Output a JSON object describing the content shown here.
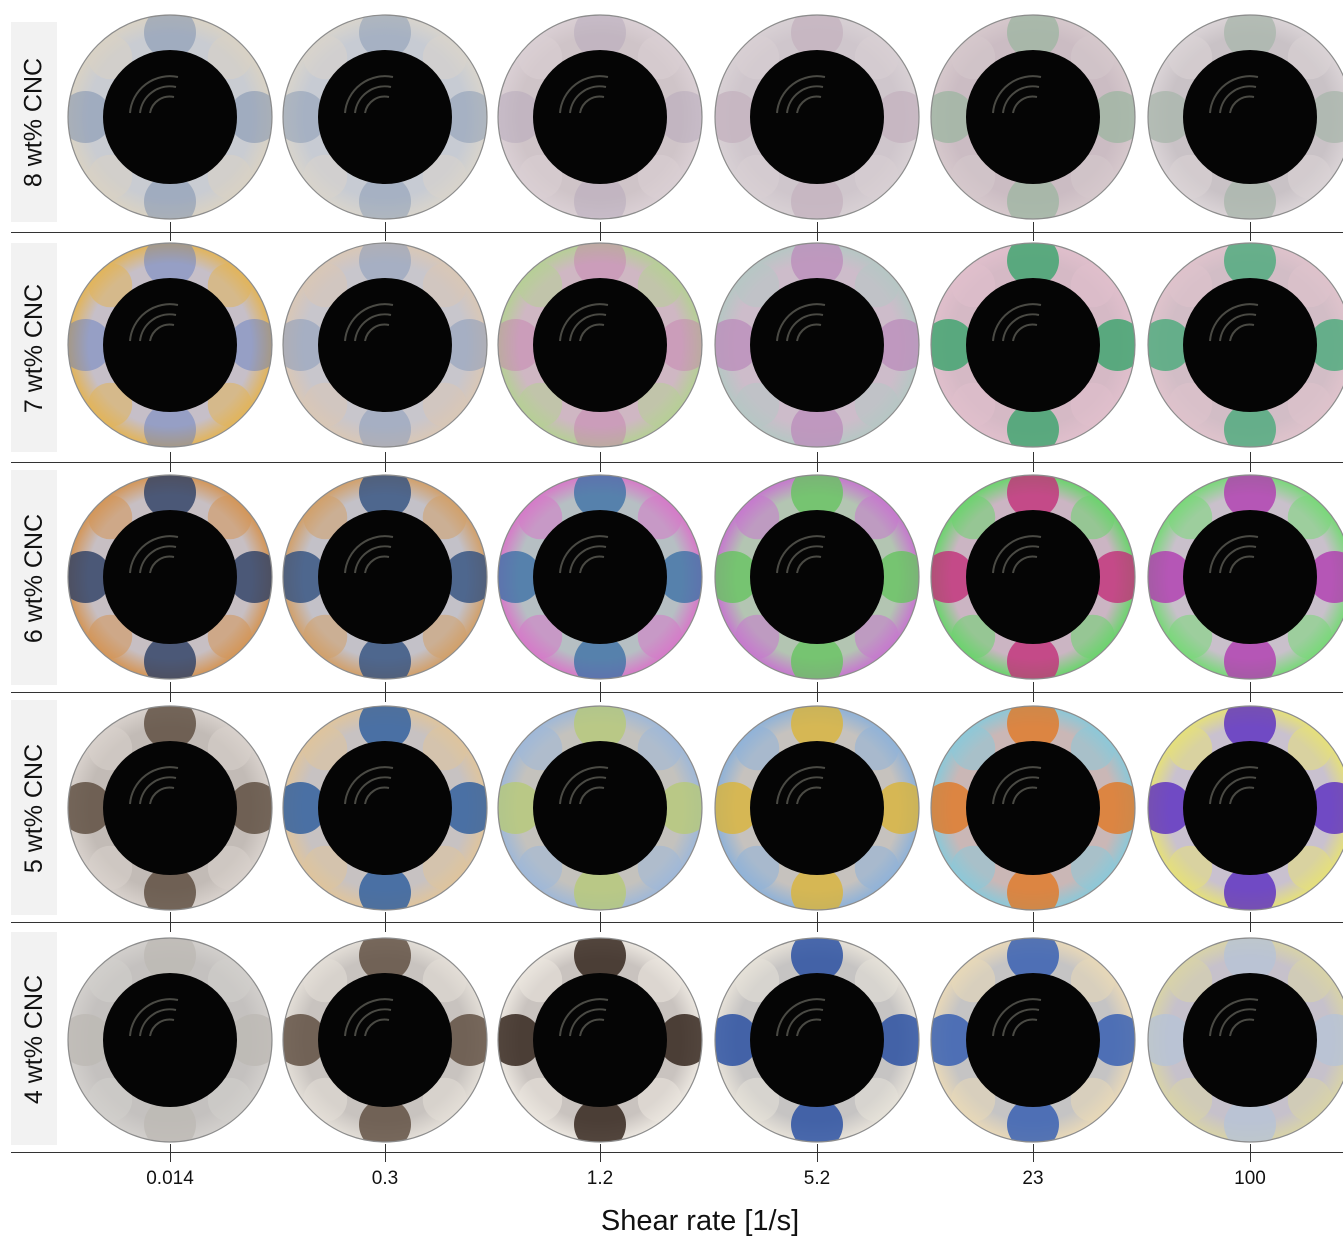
{
  "figure": {
    "row_labels": [
      "8 wt% CNC",
      "7 wt% CNC",
      "6 wt% CNC",
      "5 wt% CNC",
      "4 wt% CNC"
    ],
    "x_ticks": [
      "0.014",
      "0.3",
      "1.2",
      "5.2",
      "23",
      "100"
    ],
    "x_label": "Shear rate [1/s]"
  },
  "disk_colors": [
    [
      [
        "#c9ccd2",
        "#6e86a8",
        "#d9d2c4"
      ],
      [
        "#c7cbd3",
        "#7f93b0",
        "#d8d4cc"
      ],
      [
        "#cfc4c8",
        "#b2a3b8",
        "#dacfd4"
      ],
      [
        "#cfc6cc",
        "#c4b3bf",
        "#d8d0d4"
      ],
      [
        "#cbbcc3",
        "#9fb5a2",
        "#d6c8cc"
      ],
      [
        "#c9c2c6",
        "#aab6ad",
        "#dad3d6"
      ]
    ],
    [
      [
        "#c6bfc8",
        "#5a78c0",
        "#e2b45a"
      ],
      [
        "#c8c6cc",
        "#7d92b8",
        "#d9c7b6"
      ],
      [
        "#cfb7c3",
        "#c67fb0",
        "#b6cf96"
      ],
      [
        "#cdbcca",
        "#bc8fbc",
        "#b6c7c4"
      ],
      [
        "#d5b9c5",
        "#3aa46b",
        "#e0bfcc"
      ],
      [
        "#d2bdc6",
        "#4aaa7a",
        "#dfc3cc"
      ]
    ],
    [
      [
        "#c7bfc3",
        "#2c3f64",
        "#d49658"
      ],
      [
        "#c3c1c8",
        "#31507f",
        "#d2a06a"
      ],
      [
        "#b6bfc3",
        "#3f72a6",
        "#d67ac8"
      ],
      [
        "#b3c5b2",
        "#67c360",
        "#c678ce"
      ],
      [
        "#cbb5c3",
        "#c22f79",
        "#6bd46d"
      ],
      [
        "#c9c0cb",
        "#b03bb0",
        "#79d879"
      ]
    ],
    [
      [
        "#c2bbb6",
        "#5a4a3c",
        "#d8d1cc"
      ],
      [
        "#c7c2c2",
        "#2b5b9c",
        "#dfc49d"
      ],
      [
        "#c4c2bd",
        "#b6c978",
        "#9fb8d8"
      ],
      [
        "#c6c2be",
        "#d9b43a",
        "#8fb2d8"
      ],
      [
        "#cab7b6",
        "#e07826",
        "#8cc8d8"
      ],
      [
        "#c9c1cf",
        "#5a2cc0",
        "#e5e07a"
      ]
    ],
    [
      [
        "#c4c1bf",
        "#bdb9b4",
        "#d2cfcc"
      ],
      [
        "#c8c3bf",
        "#5b4a3c",
        "#e3ded7"
      ],
      [
        "#c9c3bf",
        "#2c1d14",
        "#ebe6df"
      ],
      [
        "#c6c4c3",
        "#224aa0",
        "#e6e1d8"
      ],
      [
        "#c5c4c4",
        "#2f5ab2",
        "#e8d8b8"
      ],
      [
        "#c6c1cb",
        "#b7c3d6",
        "#d8d3a8"
      ]
    ]
  ]
}
